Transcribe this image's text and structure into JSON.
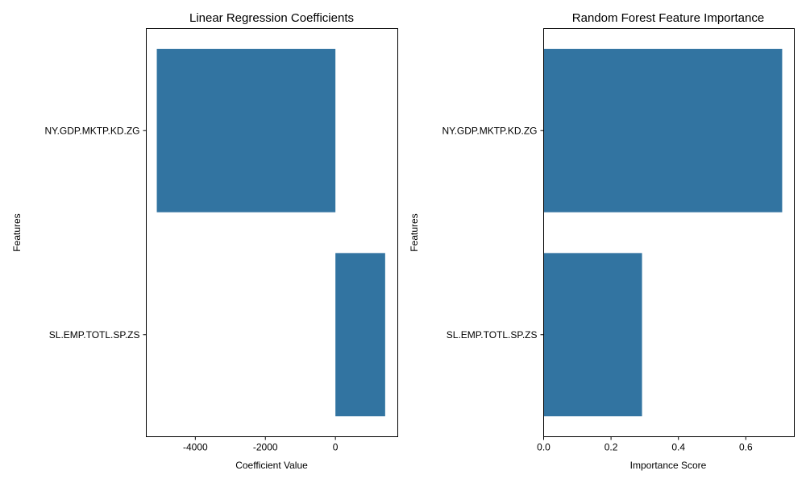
{
  "chart_data": [
    {
      "type": "bar",
      "orientation": "horizontal",
      "title": "Linear Regression Coefficients",
      "xlabel": "Coefficient Value",
      "ylabel": "Features",
      "categories": [
        "NY.GDP.MKTP.KD.ZG",
        "SL.EMP.TOTL.SP.ZS"
      ],
      "values": [
        -5100,
        1420
      ],
      "xlim": [
        -5400,
        1780
      ],
      "xticks": [
        -4000,
        -2000,
        0
      ],
      "xtick_labels": [
        "-4000",
        "-2000",
        "0"
      ],
      "grid": false,
      "bar_color": "#3274a1"
    },
    {
      "type": "bar",
      "orientation": "horizontal",
      "title": "Random Forest Feature Importance",
      "xlabel": "Importance Score",
      "ylabel": "Features",
      "categories": [
        "NY.GDP.MKTP.KD.ZG",
        "SL.EMP.TOTL.SP.ZS"
      ],
      "values": [
        0.708,
        0.292
      ],
      "xlim": [
        0,
        0.744
      ],
      "xticks": [
        0.0,
        0.2,
        0.4,
        0.6
      ],
      "xtick_labels": [
        "0.0",
        "0.2",
        "0.4",
        "0.6"
      ],
      "grid": false,
      "bar_color": "#3274a1"
    }
  ]
}
